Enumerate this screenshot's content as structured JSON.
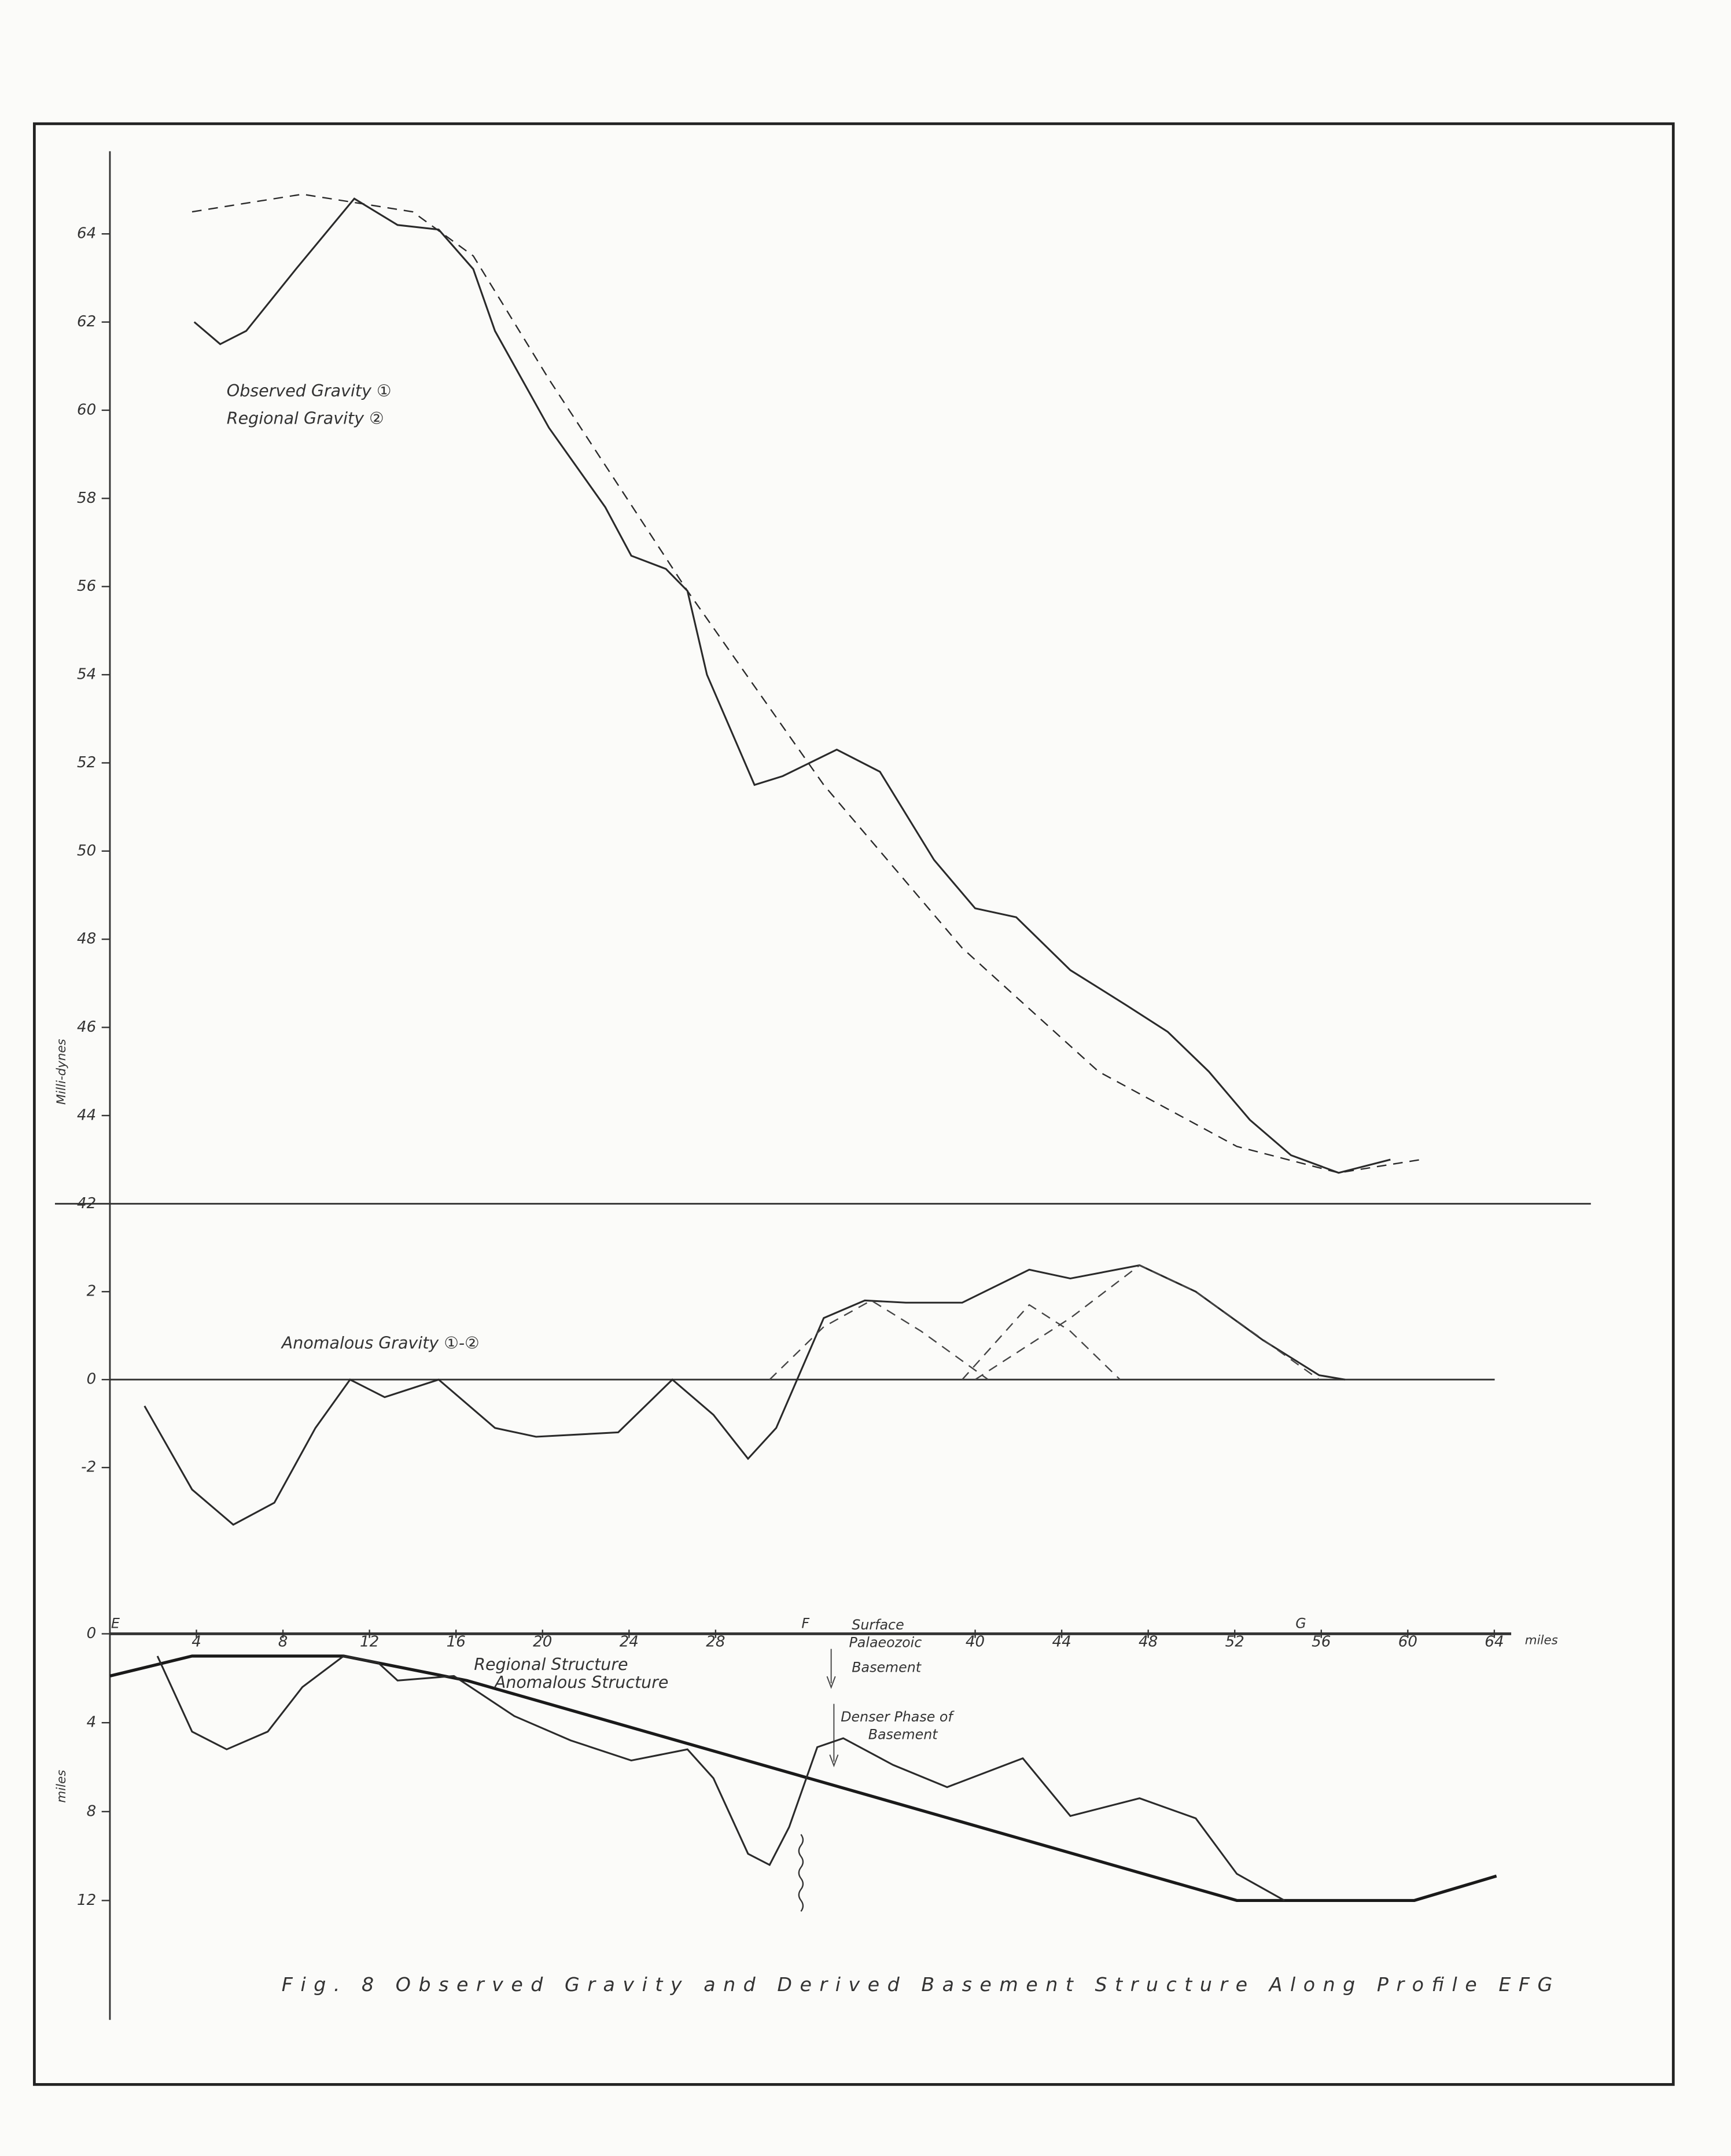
{
  "chart_data": [
    {
      "type": "line",
      "y_label": "Milli-dynes",
      "xlim": [
        0,
        68.4
      ],
      "ylim": [
        42,
        66
      ],
      "yticks": [
        42,
        44,
        46,
        48,
        50,
        52,
        54,
        56,
        58,
        60,
        62,
        64
      ],
      "series": [
        {
          "name": "Observed Gravity ①",
          "color": "#2a2a2a",
          "style": "solid",
          "x": [
            3.9,
            5.1,
            6.3,
            8.6,
            11.3,
            13.3,
            15.2,
            16.8,
            17.8,
            20.3,
            22.9,
            24.1,
            25.7,
            26.7,
            27.6,
            29.8,
            31.1,
            33.6,
            35.6,
            38.1,
            40.0,
            41.9,
            44.4,
            47.0,
            48.9,
            50.8,
            52.7,
            54.6,
            56.8,
            59.2
          ],
          "values": [
            62.0,
            61.5,
            61.8,
            63.2,
            64.8,
            64.2,
            64.1,
            63.2,
            61.8,
            59.6,
            57.8,
            56.7,
            56.4,
            55.9,
            54.0,
            51.5,
            51.7,
            52.3,
            51.8,
            49.8,
            48.7,
            48.5,
            47.3,
            46.5,
            45.9,
            45.0,
            43.9,
            43.1,
            42.7,
            43.0
          ]
        },
        {
          "name": "Regional Gravity ②",
          "color": "#2a2a2a",
          "style": "dashed",
          "x": [
            3.8,
            8.9,
            14.0,
            16.8,
            20.3,
            26.7,
            33.0,
            39.4,
            45.7,
            52.1,
            56.8,
            60.6
          ],
          "values": [
            64.5,
            64.9,
            64.5,
            63.5,
            60.7,
            55.9,
            51.5,
            47.8,
            45.0,
            43.3,
            42.7,
            43.0
          ]
        }
      ]
    },
    {
      "type": "line",
      "xlim": [
        0,
        68.4
      ],
      "ylim": [
        -4.5,
        4
      ],
      "yticks": [
        -2,
        0,
        2
      ],
      "series": [
        {
          "name": "Anomalous Gravity ①-②",
          "color": "#2a2a2a",
          "style": "solid",
          "x": [
            1.6,
            3.8,
            5.7,
            7.6,
            9.5,
            11.1,
            12.7,
            15.2,
            17.8,
            19.7,
            23.5,
            26.0,
            27.9,
            29.5,
            30.8,
            33.0,
            34.9,
            36.8,
            39.4,
            42.5,
            44.4,
            47.6,
            50.2,
            53.3,
            55.9,
            57.1
          ],
          "values": [
            -0.6,
            -2.5,
            -3.3,
            -2.8,
            -1.1,
            0,
            -0.4,
            0,
            -1.1,
            -1.3,
            -1.2,
            0,
            -0.8,
            -1.8,
            -1.1,
            1.4,
            1.8,
            1.75,
            1.75,
            2.5,
            2.3,
            2.6,
            2.0,
            0.9,
            0.1,
            0
          ]
        },
        {
          "color": "#444444",
          "style": "dashed",
          "x": [
            30.5,
            33.0,
            35.2,
            37.5,
            40.6
          ],
          "values": [
            0,
            1.2,
            1.8,
            1.1,
            0
          ]
        },
        {
          "color": "#444444",
          "style": "dashed",
          "x": [
            39.4,
            42.5,
            44.4,
            46.7
          ],
          "values": [
            0,
            1.7,
            1.1,
            0
          ]
        },
        {
          "color": "#444444",
          "style": "dashed",
          "x": [
            40.0,
            44.4,
            47.6,
            50.2,
            55.9
          ],
          "values": [
            0,
            1.4,
            2.6,
            2.0,
            0
          ]
        }
      ]
    },
    {
      "type": "line",
      "y_label": "miles",
      "x_label": "miles",
      "y_inverted": true,
      "xlim": [
        0,
        68.4
      ],
      "ylim": [
        0,
        17
      ],
      "xticks": [
        4,
        8,
        12,
        16,
        20,
        24,
        28,
        40,
        44,
        48,
        52,
        56,
        60,
        64
      ],
      "yticks": [
        0,
        4,
        8,
        12
      ],
      "points": [
        {
          "label": "E",
          "x": 0
        },
        {
          "label": "F",
          "x": 31.9
        },
        {
          "label": "G",
          "x": 54.8
        }
      ],
      "annotations": [
        "Surface",
        "Palaeozoic",
        "Basement",
        "Denser Phase of",
        "Basement"
      ],
      "caption": "Fig. 8    Observed Gravity and Derived Basement Structure Along Profile EFG",
      "series": [
        {
          "name": "Regional Structure",
          "color": "#1a1a1a",
          "style": "thick",
          "x": [
            0,
            3.8,
            10.8,
            16.5,
            52.1,
            60.3,
            64.1
          ],
          "values": [
            1.9,
            1.0,
            1.0,
            2.1,
            12.0,
            12.0,
            10.9
          ]
        },
        {
          "name": "Anomalous Structure",
          "color": "#2a2a2a",
          "style": "solid",
          "x": [
            2.2,
            3.8,
            5.4,
            7.3,
            8.9,
            10.8,
            12.4,
            13.3,
            15.9,
            18.7,
            21.3,
            24.1,
            26.7,
            27.9,
            29.5,
            30.5,
            31.4,
            32.7,
            33.9,
            36.2,
            38.7,
            42.2,
            44.4,
            47.6,
            50.2,
            52.1,
            54.3
          ],
          "values": [
            1.0,
            4.4,
            5.2,
            4.4,
            2.4,
            1.0,
            1.3,
            2.1,
            1.9,
            3.7,
            4.8,
            5.7,
            5.2,
            6.5,
            9.9,
            10.4,
            8.7,
            5.1,
            4.7,
            5.9,
            6.9,
            5.6,
            8.2,
            7.4,
            8.3,
            10.8,
            12.0
          ]
        }
      ]
    }
  ]
}
